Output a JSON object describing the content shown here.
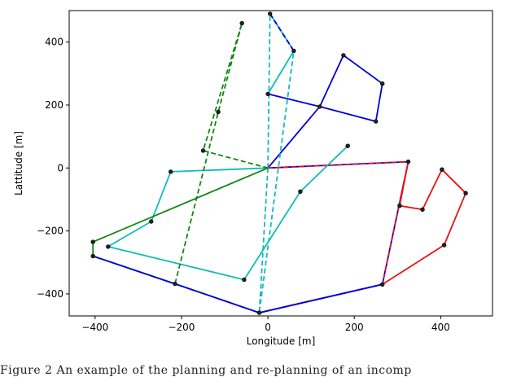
{
  "chart_data": {
    "type": "line",
    "title": "",
    "xlabel": "Longitude [m]",
    "ylabel": "Lattitude [m]",
    "xlim": [
      -460,
      520
    ],
    "ylim": [
      -470,
      500
    ],
    "xticks": [
      -400,
      -200,
      0,
      200,
      400
    ],
    "yticks": [
      -400,
      -200,
      0,
      200,
      400
    ],
    "xtick_labels": [
      "−400",
      "−200",
      "0",
      "200",
      "400"
    ],
    "ytick_labels": [
      "−400",
      "−200",
      "0",
      "200",
      "400"
    ],
    "grid": false,
    "legend": "none",
    "series": [
      {
        "color": "#0000dd",
        "style": "solid",
        "points": [
          [
            0,
            0
          ],
          [
            120,
            195
          ],
          [
            175,
            358
          ],
          [
            265,
            268
          ],
          [
            250,
            148
          ],
          [
            120,
            195
          ],
          [
            0,
            235
          ]
        ]
      },
      {
        "color": "#0000dd",
        "style": "solid",
        "points": [
          [
            0,
            0
          ],
          [
            325,
            20
          ],
          [
            265,
            -370
          ],
          [
            -20,
            -460
          ]
        ]
      },
      {
        "color": "#ee1111",
        "style": "dashed",
        "points": [
          [
            0,
            0
          ],
          [
            325,
            20
          ],
          [
            265,
            -370
          ],
          [
            -20,
            -460
          ]
        ]
      },
      {
        "color": "#ee1111",
        "style": "solid",
        "points": [
          [
            325,
            20
          ],
          [
            305,
            -120
          ],
          [
            358,
            -132
          ],
          [
            403,
            -5
          ],
          [
            458,
            -80
          ],
          [
            408,
            -245
          ],
          [
            265,
            -370
          ]
        ]
      },
      {
        "color": "#11bbbb",
        "style": "solid",
        "points": [
          [
            0,
            0
          ],
          [
            -225,
            -12
          ],
          [
            -270,
            -170
          ],
          [
            -370,
            -250
          ],
          [
            -55,
            -355
          ],
          [
            75,
            -75
          ],
          [
            185,
            70
          ]
        ]
      },
      {
        "color": "#11bbbb",
        "style": "solid",
        "points": [
          [
            0,
            235
          ],
          [
            60,
            372
          ],
          [
            5,
            490
          ],
          [
            60,
            372
          ],
          [
            0,
            235
          ]
        ]
      },
      {
        "color": "#11bbbb",
        "style": "dashed",
        "points": [
          [
            0,
            0
          ],
          [
            -20,
            -460
          ]
        ]
      },
      {
        "color": "#11bbbb",
        "style": "dashed",
        "points": [
          [
            0,
            0
          ],
          [
            5,
            490
          ],
          [
            60,
            372
          ],
          [
            -20,
            -460
          ]
        ]
      },
      {
        "color": "#0000dd",
        "style": "dashed",
        "points": [
          [
            5,
            490
          ],
          [
            60,
            372
          ]
        ]
      },
      {
        "color": "#118811",
        "style": "solid",
        "points": [
          [
            0,
            0
          ],
          [
            -405,
            -235
          ],
          [
            -405,
            -280
          ],
          [
            -215,
            -368
          ],
          [
            -20,
            -460
          ]
        ]
      },
      {
        "color": "#118811",
        "style": "dashed",
        "points": [
          [
            0,
            0
          ],
          [
            -150,
            55
          ],
          [
            -60,
            460
          ],
          [
            -115,
            178
          ],
          [
            -215,
            -368
          ]
        ]
      },
      {
        "color": "#0000dd",
        "style": "solid",
        "points": [
          [
            -405,
            -280
          ],
          [
            -215,
            -368
          ],
          [
            -20,
            -460
          ],
          [
            265,
            -370
          ]
        ]
      }
    ],
    "markers": [
      [
        5,
        490
      ],
      [
        60,
        372
      ],
      [
        175,
        358
      ],
      [
        265,
        268
      ],
      [
        0,
        235
      ],
      [
        120,
        195
      ],
      [
        250,
        148
      ],
      [
        -60,
        460
      ],
      [
        -115,
        178
      ],
      [
        -150,
        55
      ],
      [
        185,
        70
      ],
      [
        325,
        20
      ],
      [
        -225,
        -12
      ],
      [
        403,
        -5
      ],
      [
        75,
        -75
      ],
      [
        458,
        -80
      ],
      [
        305,
        -120
      ],
      [
        358,
        -132
      ],
      [
        -270,
        -170
      ],
      [
        -405,
        -235
      ],
      [
        -370,
        -250
      ],
      [
        408,
        -245
      ],
      [
        -405,
        -280
      ],
      [
        -55,
        -355
      ],
      [
        -215,
        -368
      ],
      [
        265,
        -370
      ],
      [
        -20,
        -460
      ]
    ]
  },
  "caption": "Figure 2    An example of the planning and re-planning of an incomp"
}
